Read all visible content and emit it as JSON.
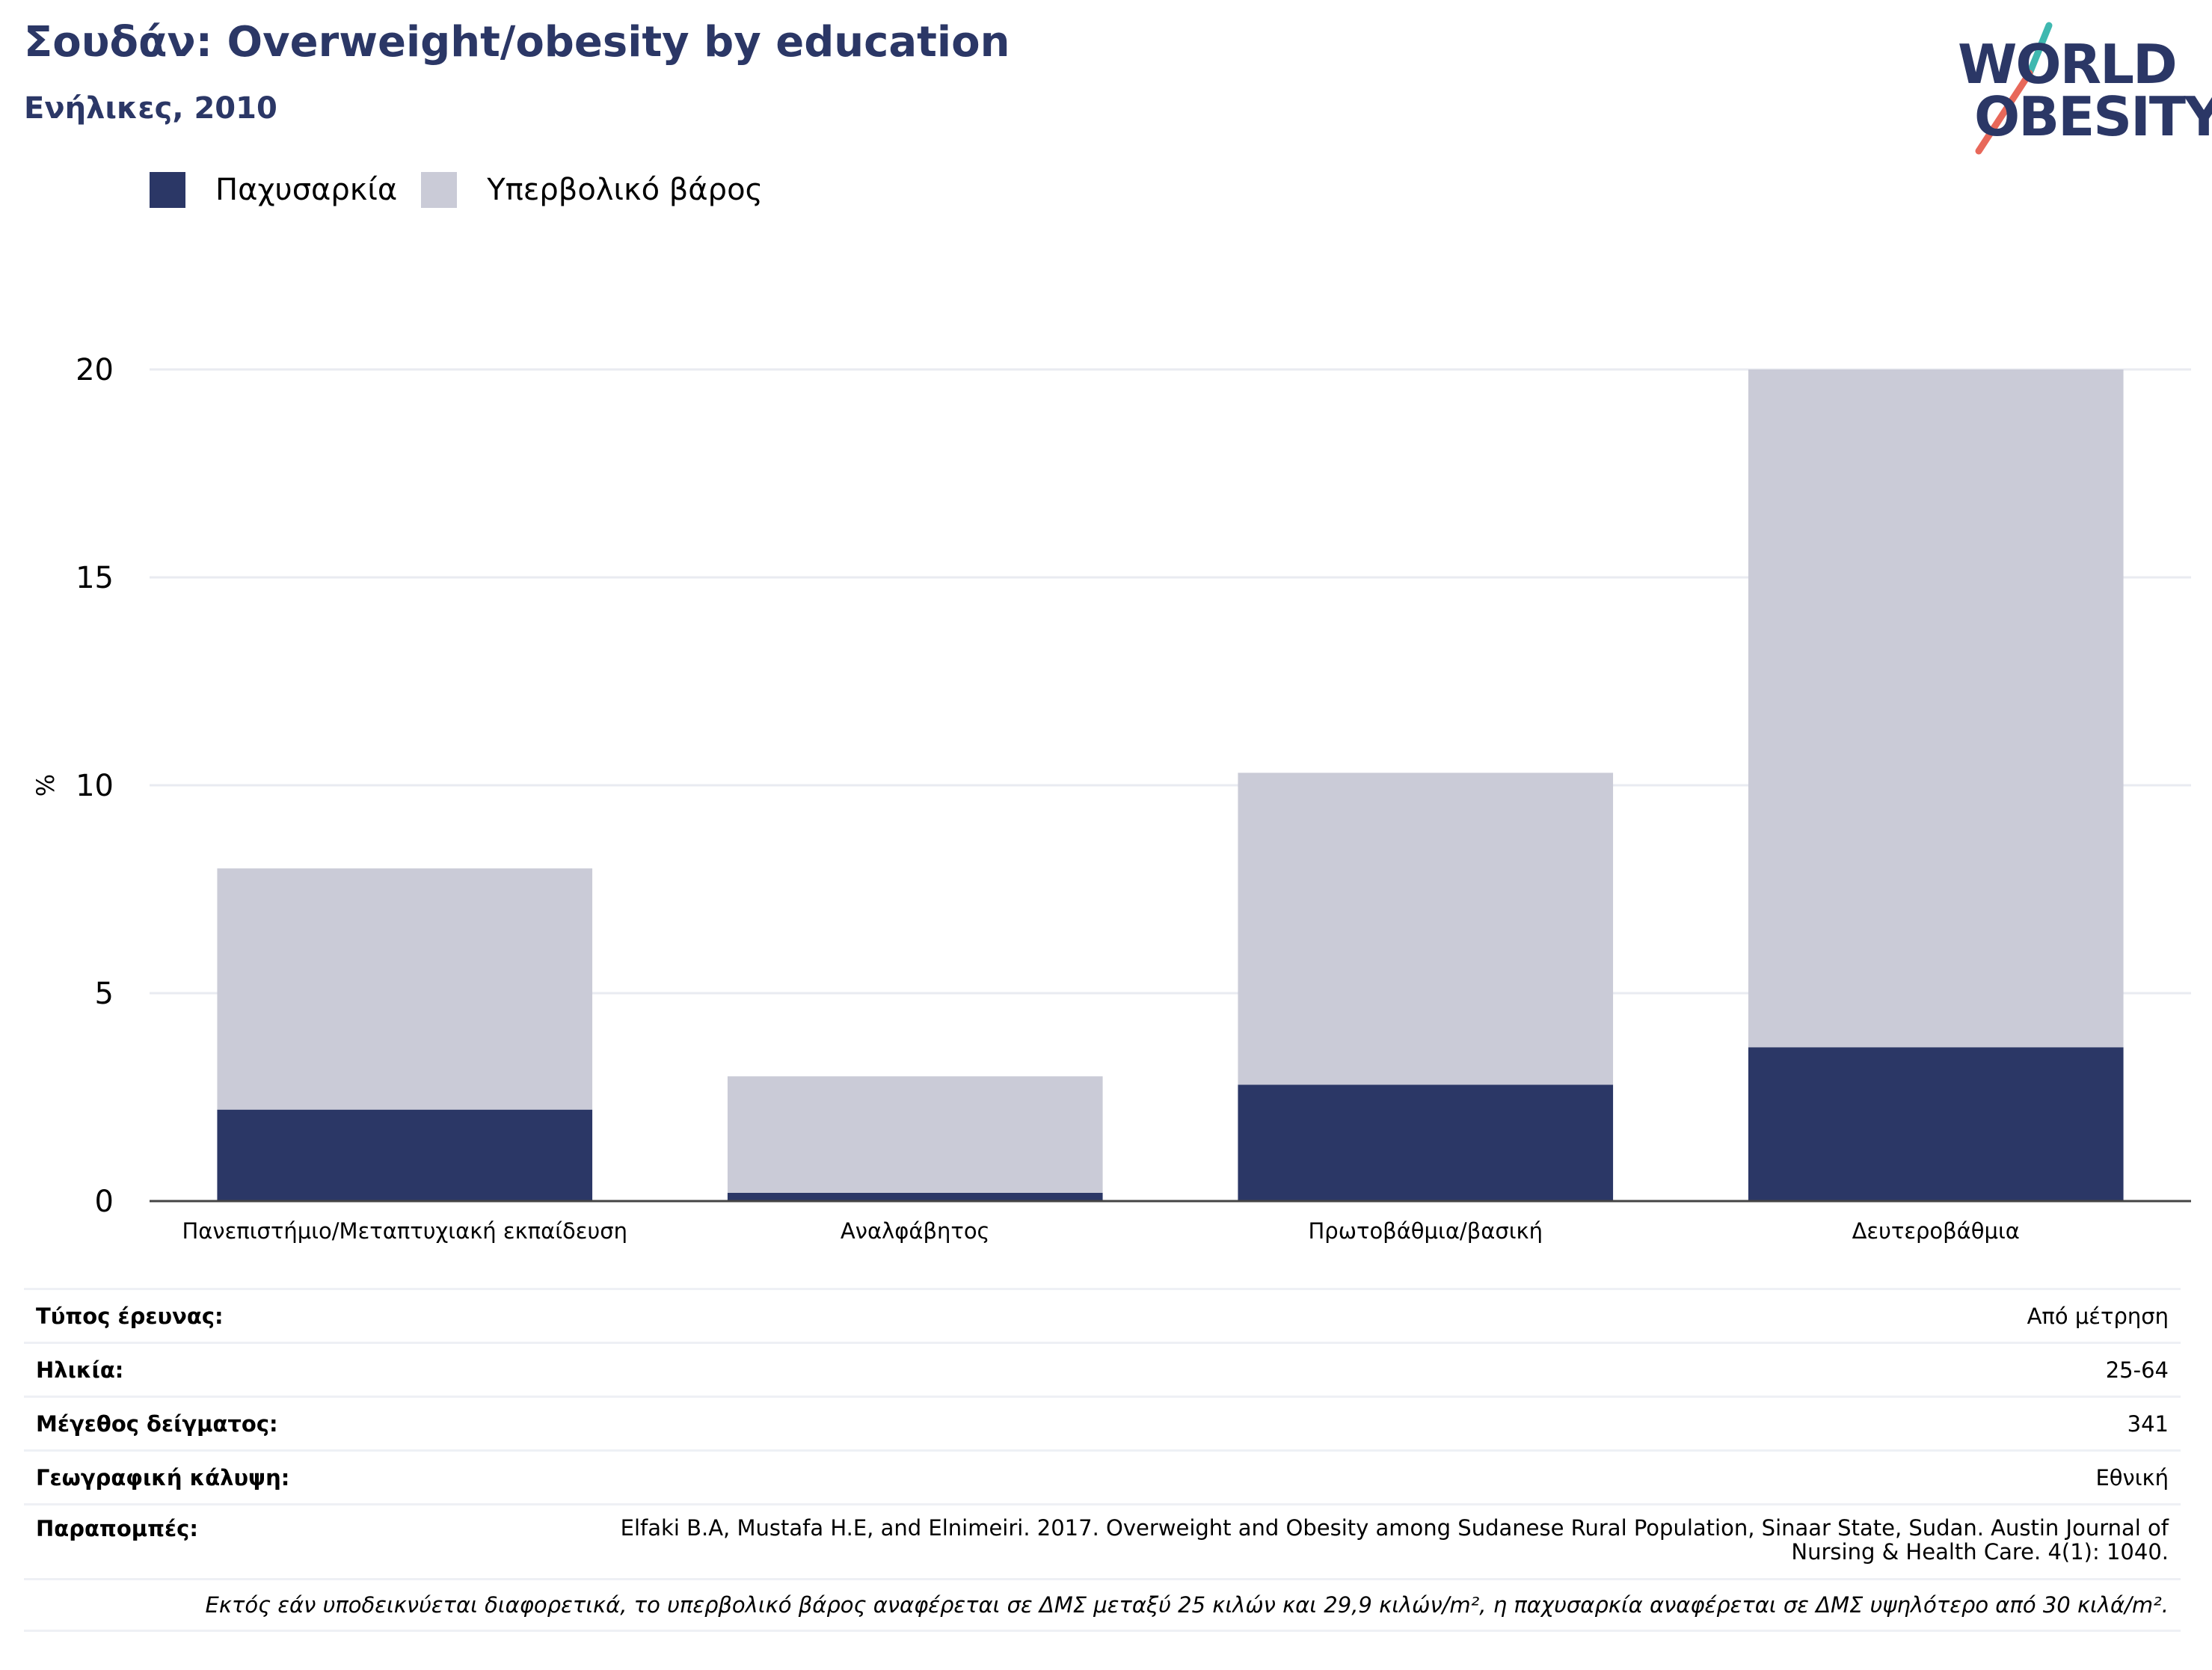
{
  "header": {
    "title": "Σουδάν: Overweight/obesity by education",
    "subtitle": "Ενήλικες, 2010"
  },
  "logo": {
    "line1": "WORLD",
    "line2": "OBESITY",
    "colors": {
      "text": "#2b3766",
      "slash_teal": "#3fb8b0",
      "slash_coral": "#e8685a"
    }
  },
  "legend": {
    "items": [
      {
        "label": "Παχυσαρκία",
        "color": "#2b3766"
      },
      {
        "label": "Υπερβολικό βάρος",
        "color": "#cacbd7"
      }
    ]
  },
  "chart_data": {
    "type": "bar",
    "stacked": true,
    "categories": [
      "Πανεπιστήμιο/Μεταπτυχιακή εκπαίδευση",
      "Αναλφάβητος",
      "Πρωτοβάθμια/βασική",
      "Δευτεροβάθμια"
    ],
    "series": [
      {
        "name": "Παχυσαρκία",
        "color": "#2b3766",
        "values": [
          2.2,
          0.2,
          2.8,
          3.7
        ]
      },
      {
        "name": "Υπερβολικό βάρος",
        "color": "#cacbd7",
        "values": [
          5.8,
          2.8,
          7.5,
          16.3
        ]
      }
    ],
    "ylabel": "%",
    "xlabel": "",
    "ylim": [
      0,
      20
    ],
    "yticks": [
      0,
      5,
      10,
      15,
      20
    ],
    "grid": true
  },
  "meta": {
    "rows": [
      {
        "key": "Τύπος έρευνας:",
        "value": "Από μέτρηση"
      },
      {
        "key": "Ηλικία:",
        "value": "25-64"
      },
      {
        "key": "Μέγεθος δείγματος:",
        "value": "341"
      },
      {
        "key": "Γεωγραφική κάλυψη:",
        "value": "Εθνική"
      }
    ],
    "references_key": "Παραπομπές:",
    "references_value": "Elfaki B.A, Mustafa H.E, and Elnimeiri. 2017. Overweight and Obesity among Sudanese Rural Population, Sinaar State, Sudan. Austin Journal of Nursing & Health Care. 4(1): 1040.",
    "note": "Εκτός εάν υποδεικνύεται διαφορετικά, το υπερβολικό βάρος αναφέρεται σε ΔΜΣ μεταξύ 25 κιλών και 29,9 κιλών/m², η παχυσαρκία αναφέρεται σε ΔΜΣ υψηλότερο από 30 κιλά/m²."
  }
}
